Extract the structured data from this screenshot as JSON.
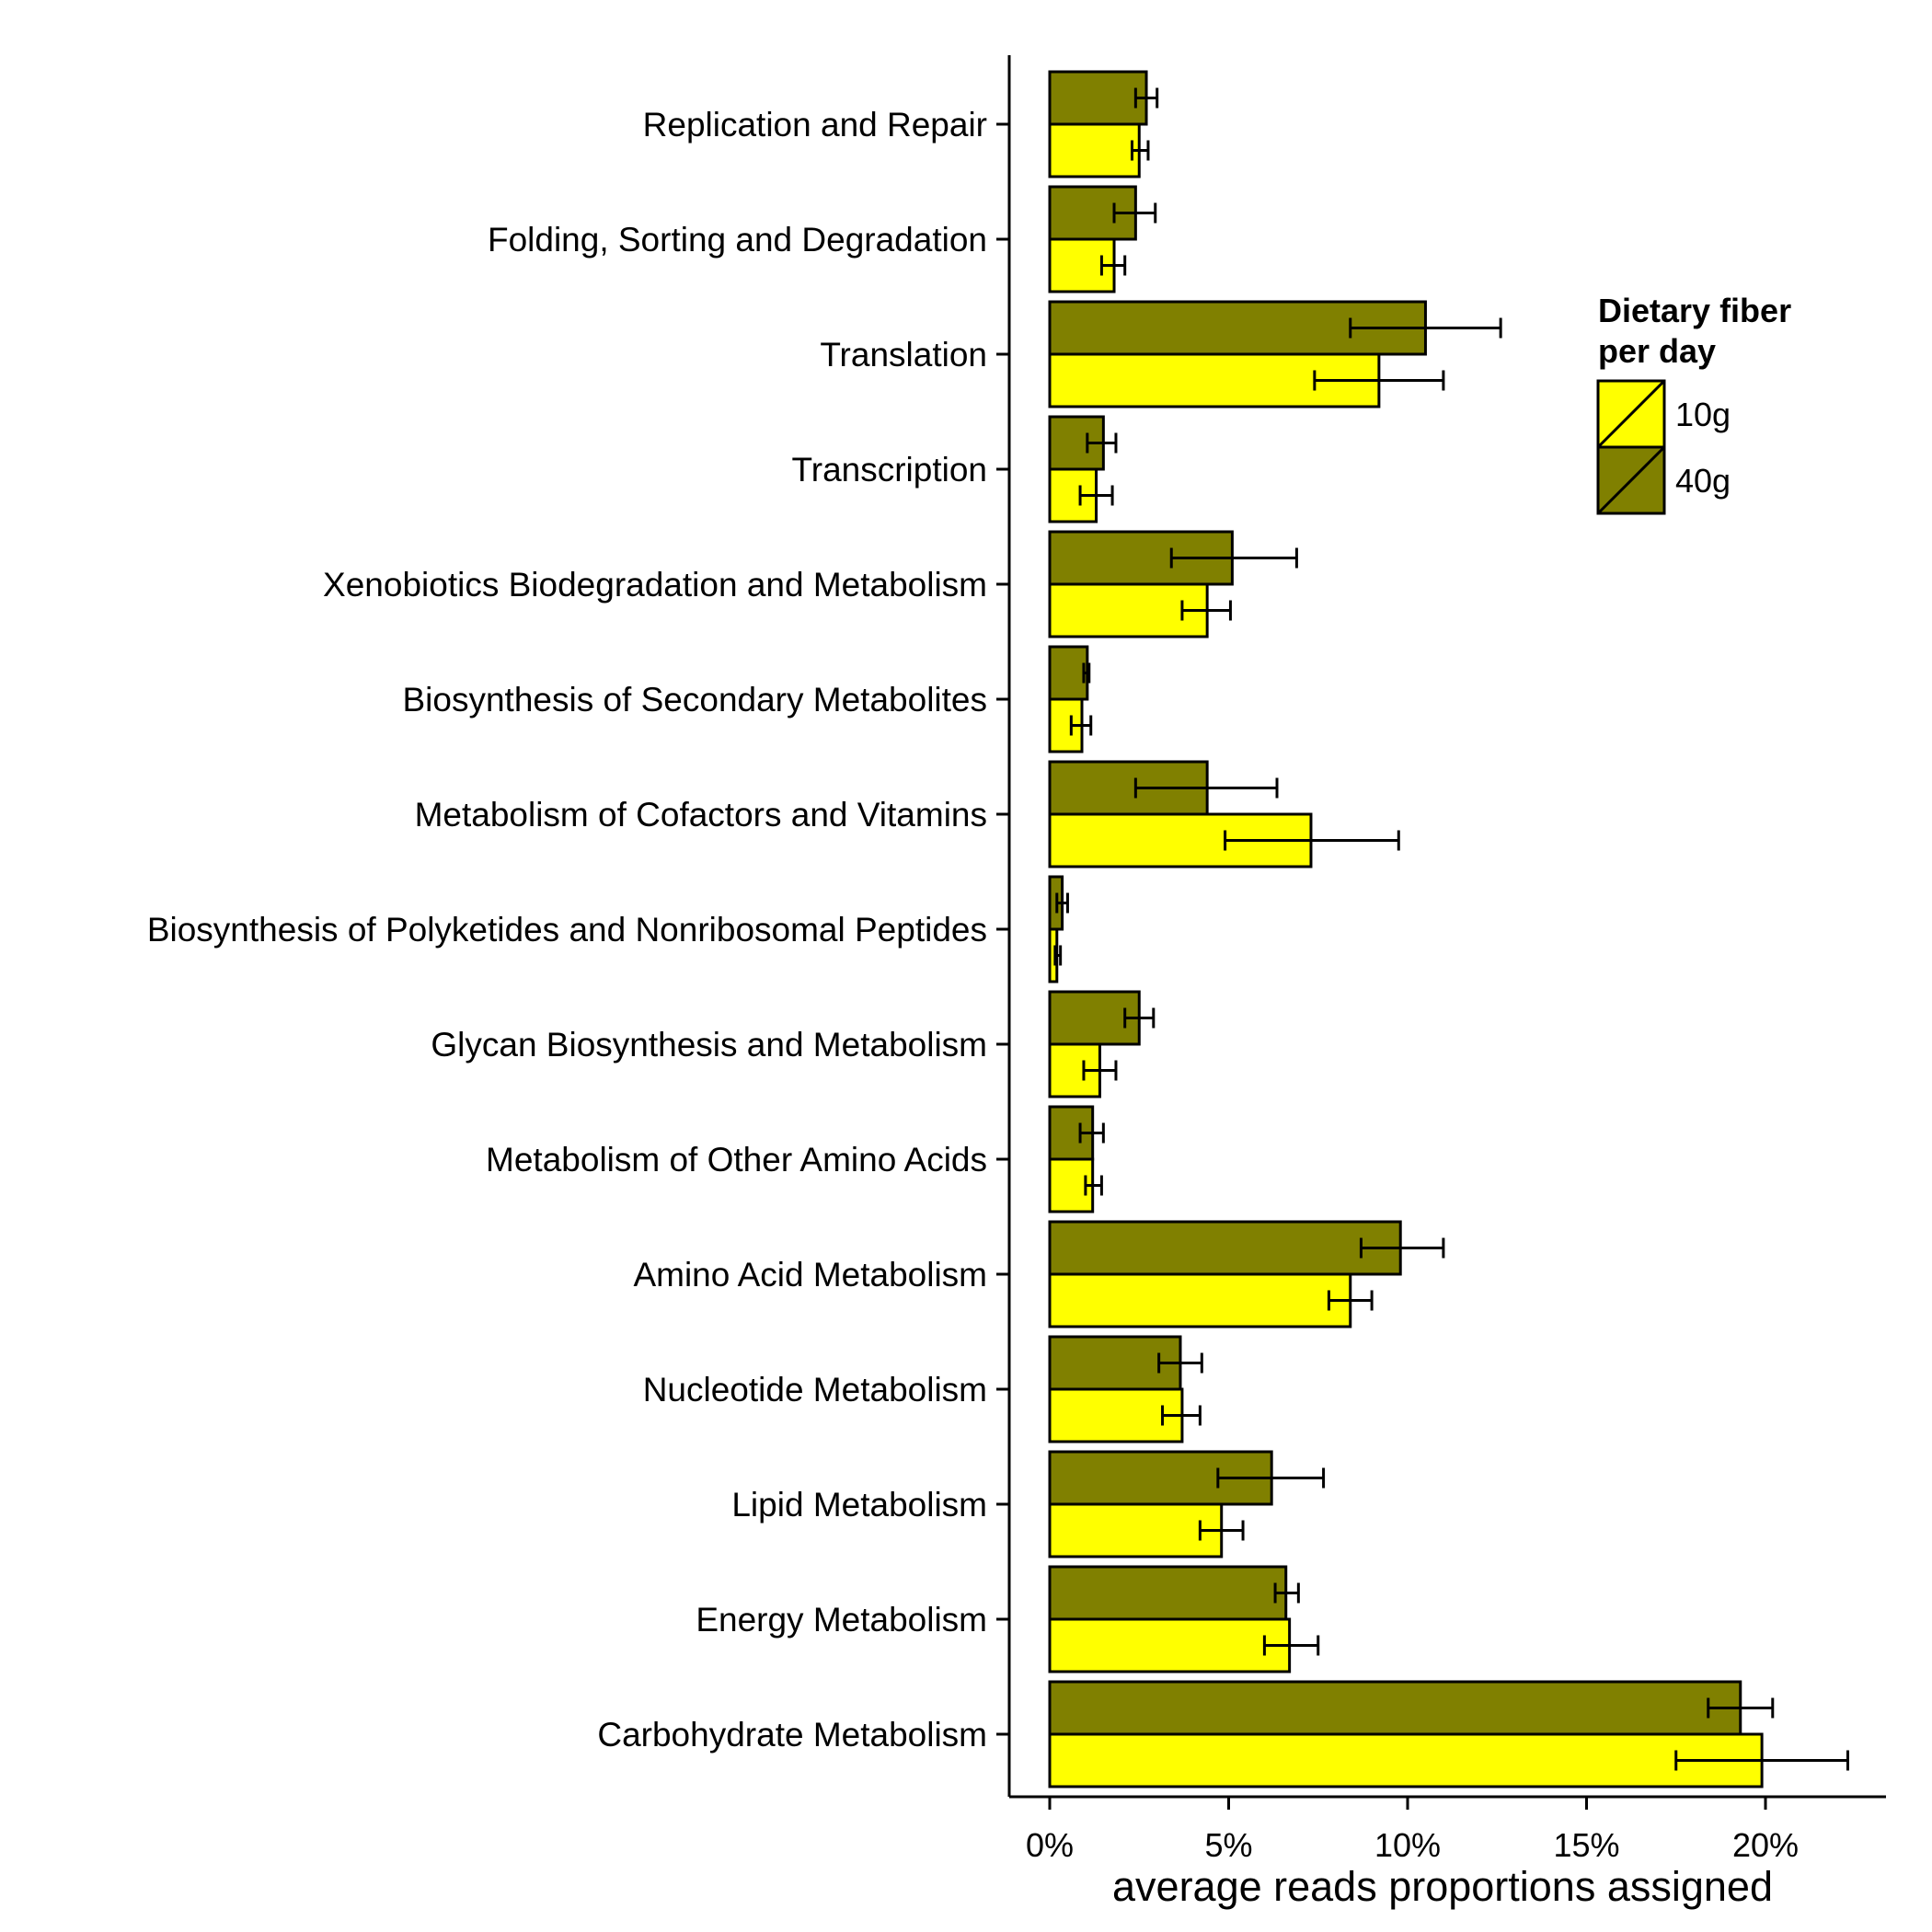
{
  "chart_data": {
    "type": "bar",
    "orientation": "horizontal",
    "xlabel": "average reads proportions assigned",
    "xlim": [
      0,
      23.2
    ],
    "xticks": [
      0,
      5,
      10,
      15,
      20
    ],
    "xtick_labels": [
      "0%",
      "5%",
      "10%",
      "15%",
      "20%"
    ],
    "grid": false,
    "legend": {
      "title": [
        "Dietary fiber",
        "per day"
      ],
      "position": "right"
    },
    "categories": [
      "Replication and Repair",
      "Folding, Sorting and Degradation",
      "Translation",
      "Transcription",
      "Xenobiotics Biodegradation and Metabolism",
      "Biosynthesis of Secondary Metabolites",
      "Metabolism of Cofactors and Vitamins",
      "Biosynthesis of Polyketides and Nonribosomal Peptides",
      "Glycan Biosynthesis and Metabolism",
      "Metabolism of Other Amino Acids",
      "Amino Acid Metabolism",
      "Nucleotide Metabolism",
      "Lipid Metabolism",
      "Energy Metabolism",
      "Carbohydrate Metabolism"
    ],
    "series": [
      {
        "name": "10g",
        "color": "#ffff00",
        "values": [
          2.5,
          1.8,
          9.2,
          1.3,
          4.4,
          0.9,
          7.3,
          0.2,
          1.4,
          1.2,
          8.4,
          3.7,
          4.8,
          6.7,
          19.9
        ],
        "err_low": [
          2.3,
          1.45,
          7.4,
          0.85,
          3.7,
          0.6,
          4.9,
          0.15,
          0.95,
          1.0,
          7.8,
          3.15,
          4.2,
          6.0,
          17.5
        ],
        "err_high": [
          2.75,
          2.1,
          11.0,
          1.75,
          5.05,
          1.15,
          9.75,
          0.3,
          1.85,
          1.45,
          9.0,
          4.2,
          5.4,
          7.5,
          22.3
        ]
      },
      {
        "name": "40g",
        "color": "#808000",
        "values": [
          2.7,
          2.4,
          10.5,
          1.5,
          5.1,
          1.05,
          4.4,
          0.35,
          2.5,
          1.2,
          9.8,
          3.65,
          6.2,
          6.6,
          19.3
        ],
        "err_low": [
          2.4,
          1.8,
          8.4,
          1.05,
          3.4,
          0.95,
          2.4,
          0.2,
          2.1,
          0.85,
          8.7,
          3.05,
          4.7,
          6.3,
          18.4
        ],
        "err_high": [
          3.0,
          2.95,
          12.6,
          1.85,
          6.9,
          1.1,
          6.35,
          0.5,
          2.9,
          1.5,
          11.0,
          4.25,
          7.65,
          6.95,
          20.2
        ]
      }
    ]
  }
}
